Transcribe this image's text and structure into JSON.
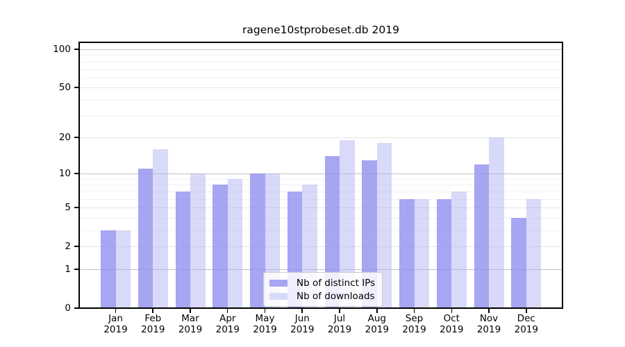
{
  "title": "ragene10stprobeset.db 2019",
  "chart_data": {
    "type": "bar",
    "title": "ragene10stprobeset.db 2019",
    "categories": [
      "Jan",
      "Feb",
      "Mar",
      "Apr",
      "May",
      "Jun",
      "Jul",
      "Aug",
      "Sep",
      "Oct",
      "Nov",
      "Dec"
    ],
    "year_label": "2019",
    "series": [
      {
        "name": "Nb of distinct IPs",
        "color": "rgba(144,144,239,0.8)",
        "color_hex": "#a6a6f2",
        "values": [
          3,
          11,
          7,
          8,
          10,
          7,
          14,
          13,
          6,
          6,
          12,
          4
        ]
      },
      {
        "name": "Nb of downloads",
        "color": "rgba(171,171,242,0.45)",
        "color_hex": "#d9d9f9",
        "values": [
          3,
          16,
          10,
          9,
          10,
          8,
          19,
          18,
          6,
          7,
          20,
          6
        ]
      }
    ],
    "xlabel": "",
    "ylabel": "",
    "yscale": "log1p",
    "ylim": [
      0,
      113
    ],
    "y_tick_labels": [
      0,
      1,
      2,
      5,
      10,
      20,
      50,
      100
    ],
    "grid": {
      "on": true,
      "major": [
        1,
        10,
        100
      ],
      "mid": [
        2,
        5,
        20,
        50
      ],
      "minor": [
        3,
        4,
        6,
        7,
        8,
        9,
        30,
        40,
        60,
        70,
        80,
        90
      ]
    },
    "legend": {
      "position": "lower center",
      "entries": [
        "Nb of distinct IPs",
        "Nb of downloads"
      ]
    }
  }
}
